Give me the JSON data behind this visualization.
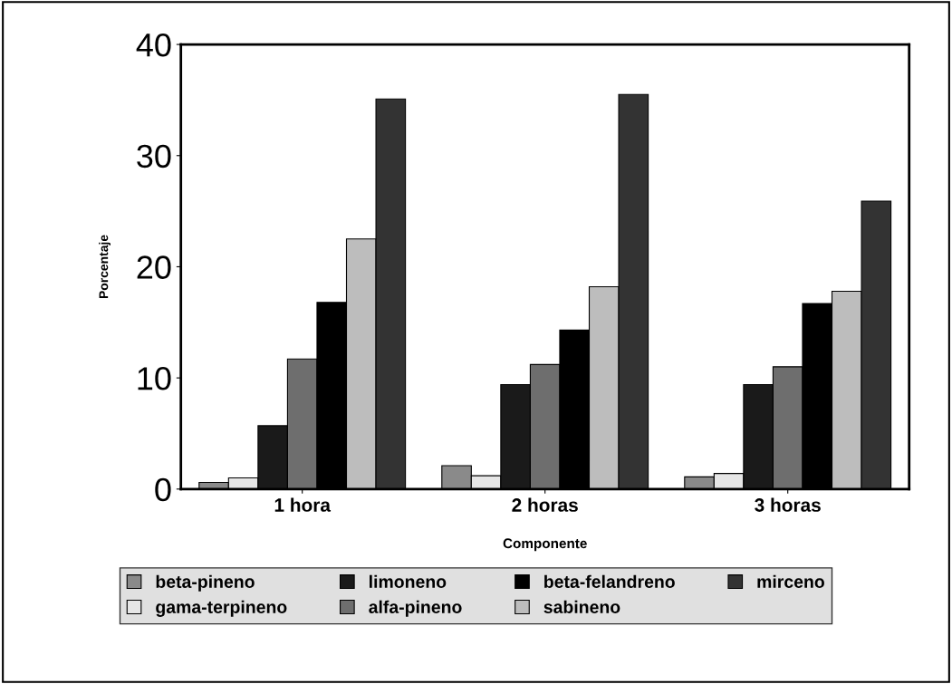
{
  "chart_data": {
    "type": "bar",
    "xlabel": "Componente",
    "ylabel": "Porcentaje",
    "categories": [
      "1 hora",
      "2 horas",
      "3 horas"
    ],
    "series": [
      {
        "name": "beta-pineno",
        "color": "#8a8a8a",
        "values": [
          0.6,
          2.1,
          1.1
        ]
      },
      {
        "name": "gama-terpineno",
        "color": "#e6e6e6",
        "values": [
          1.0,
          1.2,
          1.4
        ]
      },
      {
        "name": "limoneno",
        "color": "#1a1a1a",
        "values": [
          5.7,
          9.4,
          9.4
        ]
      },
      {
        "name": "alfa-pineno",
        "color": "#6e6e6e",
        "values": [
          11.7,
          11.2,
          11.0
        ]
      },
      {
        "name": "beta-felandreno",
        "color": "#000000",
        "values": [
          16.8,
          14.3,
          16.7
        ]
      },
      {
        "name": "sabineno",
        "color": "#bdbdbd",
        "values": [
          22.5,
          18.2,
          17.8
        ]
      },
      {
        "name": "mirceno",
        "color": "#333333",
        "values": [
          35.1,
          35.5,
          25.9
        ]
      }
    ],
    "ylim": [
      0,
      40
    ],
    "yticks": [
      0,
      10,
      20,
      30,
      40
    ],
    "grid": false,
    "legend": "bottom"
  }
}
